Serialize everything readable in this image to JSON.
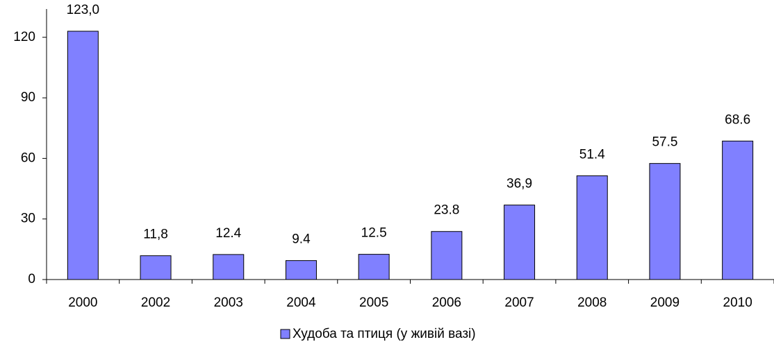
{
  "chart_data": {
    "type": "bar",
    "categories": [
      "2000",
      "2002",
      "2003",
      "2004",
      "2005",
      "2006",
      "2007",
      "2008",
      "2009",
      "2010"
    ],
    "series": [
      {
        "name": "Худоба та птиця (у живій вазі)",
        "color": "#8080ff",
        "values": [
          123.0,
          11.8,
          12.4,
          9.4,
          12.5,
          23.8,
          36.9,
          51.4,
          57.5,
          68.6
        ],
        "value_labels": [
          "123,0",
          "11,8",
          "12.4",
          "9.4",
          "12.5",
          "23.8",
          "36,9",
          "51.4",
          "57.5",
          "68.6"
        ]
      }
    ],
    "ylim": [
      0,
      134
    ],
    "yticks": [
      0,
      30,
      60,
      90,
      120
    ],
    "grid": false,
    "legend": "bottom"
  }
}
